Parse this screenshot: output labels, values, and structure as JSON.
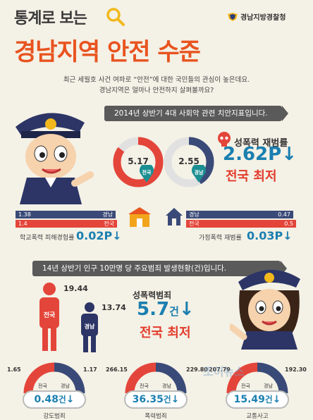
{
  "header": {
    "title_small": "통계로 보는",
    "title_big": "경남지역 안전 수준",
    "org": "경남지방경찰청",
    "intro_line1": "최근 세월호 사건 여파로 “안전”에 대한 국민들의 관심이 높은데요.",
    "intro_line2": "경남지역은 얼마나 안전하지 살펴볼까요?"
  },
  "section1": {
    "banner": "2014년 상반기 4대 사회악 관련 치안지표입니다.",
    "donut_national": {
      "value": "5.17",
      "tag": "전국",
      "fill": 0.85
    },
    "donut_gyeongnam": {
      "value": "2.55",
      "tag": "경남",
      "fill": 0.42
    },
    "sexual_label": "성폭력 재범률",
    "sexual_value": "2.62P",
    "sexual_best": "전국 최저",
    "school": {
      "bar1_value": "1.38",
      "bar1_tag": "경남",
      "bar2_value": "1.4",
      "bar2_tag": "전국",
      "caption": "학교폭력 피해경험률",
      "value": "0.02P"
    },
    "domestic": {
      "bar1_value": "0.47",
      "bar1_tag": "경남",
      "bar2_value": "0.5",
      "bar2_tag": "전국",
      "caption": "가정폭력 재범률",
      "value": "0.03P"
    }
  },
  "section2": {
    "banner": "14년 상반기 인구 10만명 당 주요범죄 발생현황(건)입니다.",
    "national_value": "19.44",
    "national_tag": "전국",
    "gyeongnam_value": "13.74",
    "gyeongnam_tag": "경남",
    "crime_label": "성폭력범죄",
    "crime_value": "5.7",
    "crime_unit": "건",
    "crime_best": "전국 최저",
    "gauges": [
      {
        "left_value": "1.65",
        "right_value": "1.17",
        "left_tag": "전국",
        "right_tag": "경남",
        "diff": "0.48",
        "unit": "건",
        "caption": "강도범죄"
      },
      {
        "left_value": "266.15",
        "right_value": "229.80",
        "left_tag": "전국",
        "right_tag": "경남",
        "diff": "36.35",
        "unit": "건",
        "caption": "폭력범죄"
      },
      {
        "left_value": "207.79",
        "right_value": "192.30",
        "left_tag": "전국",
        "right_tag": "경남",
        "diff": "15.49",
        "unit": "건",
        "caption": "교통사고"
      }
    ]
  },
  "watermark": "조이뉴스",
  "colors": {
    "accent_orange": "#e8531f",
    "blue": "#1a7fb0",
    "red": "#e23a2a",
    "navy": "#3a4a78"
  }
}
